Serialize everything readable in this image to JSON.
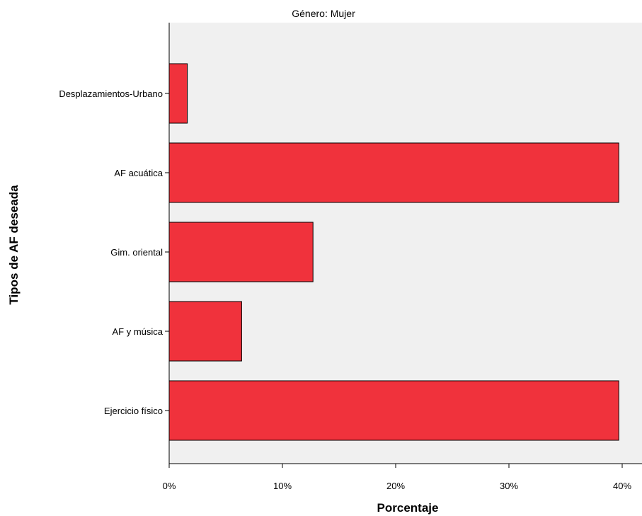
{
  "chart_data": {
    "type": "bar",
    "orientation": "horizontal",
    "title": "Género: Mujer",
    "xlabel": "Porcentaje",
    "ylabel": "Tipos de AF deseada",
    "categories": [
      "Desplazamientos-Urbano",
      "AF acuática",
      "Gim. oriental",
      "AF y música",
      "Ejercicio físico"
    ],
    "values": [
      1.6,
      39.7,
      12.7,
      6.4,
      39.7
    ],
    "xlim": [
      0,
      42
    ],
    "xticks": [
      0,
      10,
      20,
      30,
      40
    ],
    "xtick_labels": [
      "0%",
      "10%",
      "20%",
      "30%",
      "40%"
    ],
    "grid": false,
    "colors": {
      "bar_fill": "#f0323c",
      "bar_stroke": "#000000",
      "plot_background": "#f0f0f0"
    }
  }
}
